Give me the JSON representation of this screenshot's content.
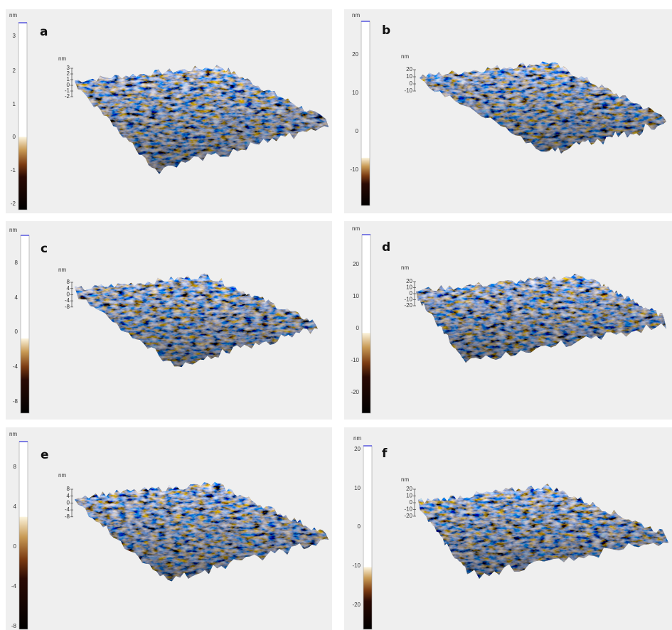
{
  "panels": [
    {
      "label": "a",
      "colorbar": {
        "unit": "nm",
        "ticks": [
          3,
          2,
          1,
          0,
          -1,
          -2
        ]
      },
      "axis": {
        "unit": "nm",
        "ticks": [
          3,
          2,
          1,
          0,
          -1,
          -2
        ]
      }
    },
    {
      "label": "b",
      "colorbar": {
        "unit": "nm",
        "ticks": [
          20,
          10,
          0,
          -10
        ]
      },
      "axis": {
        "unit": "nm",
        "ticks": [
          20,
          10,
          0,
          -10
        ]
      }
    },
    {
      "label": "c",
      "colorbar": {
        "unit": "nm",
        "ticks": [
          8,
          4,
          0,
          -4,
          -8
        ]
      },
      "axis": {
        "unit": "nm",
        "ticks": [
          8,
          4,
          0,
          -4,
          -8
        ]
      }
    },
    {
      "label": "d",
      "colorbar": {
        "unit": "nm",
        "ticks": [
          20,
          10,
          0,
          -10,
          -20
        ]
      },
      "axis": {
        "unit": "nm",
        "ticks": [
          20,
          10,
          0,
          -10,
          -20
        ]
      }
    },
    {
      "label": "e",
      "colorbar": {
        "unit": "nm",
        "ticks": [
          8,
          4,
          0,
          -4,
          -8
        ]
      },
      "axis": {
        "unit": "nm",
        "ticks": [
          8,
          4,
          0,
          -4,
          -8
        ]
      }
    },
    {
      "label": "f",
      "colorbar": {
        "unit": "nm",
        "ticks": [
          20,
          10,
          0,
          -10,
          -20
        ]
      },
      "axis": {
        "unit": "nm",
        "ticks": [
          20,
          10,
          0,
          -10,
          -20
        ]
      }
    }
  ]
}
